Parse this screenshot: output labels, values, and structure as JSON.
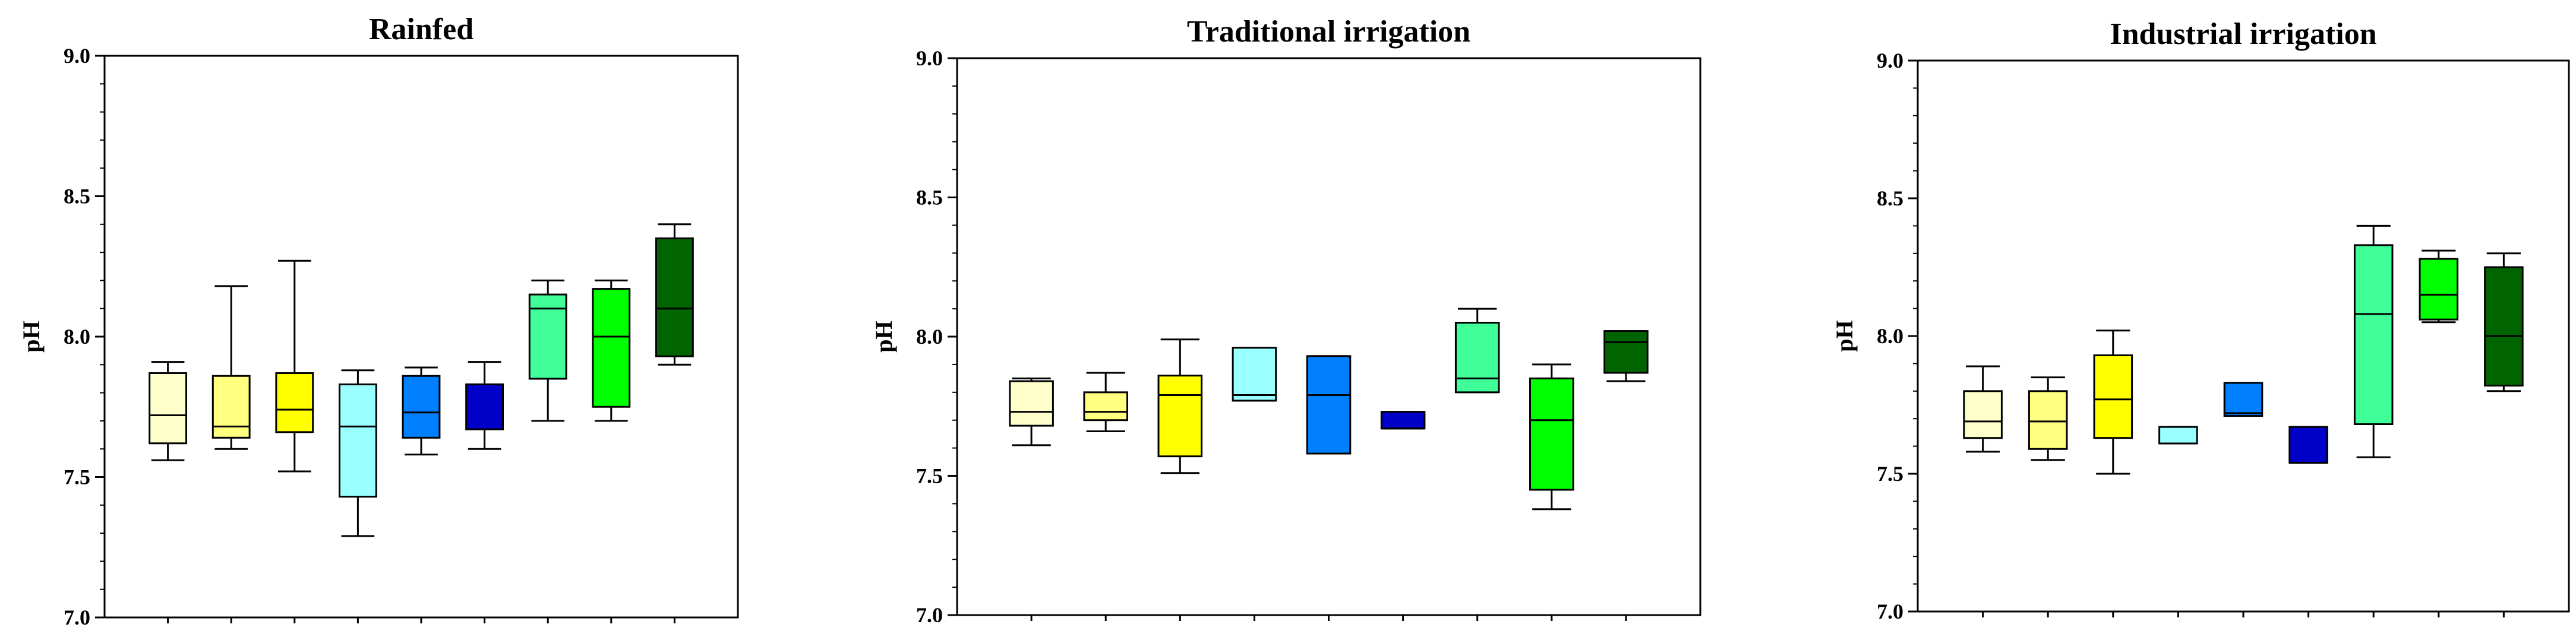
{
  "chart_data": [
    {
      "type": "box",
      "title": "Rainfed",
      "xlabel": "",
      "ylabel": "pH",
      "ylim": [
        7.0,
        9.0
      ],
      "yticks": [
        "7.0",
        "7.5",
        "8.0",
        "8.5",
        "9.0"
      ],
      "boxes": [
        {
          "color": "#ffffcc",
          "whisker_low": 7.56,
          "q1": 7.62,
          "median": 7.72,
          "q3": 7.87,
          "whisker_high": 7.91
        },
        {
          "color": "#ffff80",
          "whisker_low": 7.6,
          "q1": 7.64,
          "median": 7.68,
          "q3": 7.86,
          "whisker_high": 8.18
        },
        {
          "color": "#ffff00",
          "whisker_low": 7.52,
          "q1": 7.66,
          "median": 7.74,
          "q3": 7.87,
          "whisker_high": 8.27
        },
        {
          "color": "#99ffff",
          "whisker_low": 7.29,
          "q1": 7.43,
          "median": 7.68,
          "q3": 7.83,
          "whisker_high": 7.88
        },
        {
          "color": "#0080ff",
          "whisker_low": 7.58,
          "q1": 7.64,
          "median": 7.73,
          "q3": 7.86,
          "whisker_high": 7.89
        },
        {
          "color": "#0000c8",
          "whisker_low": 7.6,
          "q1": 7.67,
          "median": 7.83,
          "q3": 7.83,
          "whisker_high": 7.91
        },
        {
          "color": "#40ff99",
          "whisker_low": 7.7,
          "q1": 7.85,
          "median": 8.1,
          "q3": 8.15,
          "whisker_high": 8.2
        },
        {
          "color": "#00ff00",
          "whisker_low": 7.7,
          "q1": 7.75,
          "median": 8.0,
          "q3": 8.17,
          "whisker_high": 8.2
        },
        {
          "color": "#006400",
          "whisker_low": 7.9,
          "q1": 7.93,
          "median": 8.1,
          "q3": 8.35,
          "whisker_high": 8.4
        }
      ]
    },
    {
      "type": "box",
      "title": "Traditional irrigation",
      "xlabel": "",
      "ylabel": "pH",
      "ylim": [
        7.0,
        9.0
      ],
      "yticks": [
        "7.0",
        "7.5",
        "8.0",
        "8.5",
        "9.0"
      ],
      "boxes": [
        {
          "color": "#ffffcc",
          "whisker_low": 7.61,
          "q1": 7.68,
          "median": 7.73,
          "q3": 7.84,
          "whisker_high": 7.85
        },
        {
          "color": "#ffff80",
          "whisker_low": 7.66,
          "q1": 7.7,
          "median": 7.73,
          "q3": 7.8,
          "whisker_high": 7.87
        },
        {
          "color": "#ffff00",
          "whisker_low": 7.51,
          "q1": 7.57,
          "median": 7.79,
          "q3": 7.86,
          "whisker_high": 7.99
        },
        {
          "color": "#99ffff",
          "whisker_low": 7.77,
          "q1": 7.77,
          "median": 7.79,
          "q3": 7.96,
          "whisker_high": 7.96
        },
        {
          "color": "#0080ff",
          "whisker_low": 7.58,
          "q1": 7.58,
          "median": 7.79,
          "q3": 7.93,
          "whisker_high": 7.93
        },
        {
          "color": "#0000c8",
          "whisker_low": 7.67,
          "q1": 7.67,
          "median": 7.67,
          "q3": 7.73,
          "whisker_high": 7.73
        },
        {
          "color": "#40ff99",
          "whisker_low": 7.8,
          "q1": 7.8,
          "median": 7.85,
          "q3": 8.05,
          "whisker_high": 8.1
        },
        {
          "color": "#00ff00",
          "whisker_low": 7.38,
          "q1": 7.45,
          "median": 7.7,
          "q3": 7.85,
          "whisker_high": 7.9
        },
        {
          "color": "#006400",
          "whisker_low": 7.84,
          "q1": 7.87,
          "median": 7.98,
          "q3": 8.02,
          "whisker_high": 8.02
        }
      ]
    },
    {
      "type": "box",
      "title": "Industrial irrigation",
      "xlabel": "",
      "ylabel": "pH",
      "ylim": [
        7.0,
        9.0
      ],
      "yticks": [
        "7.0",
        "7.5",
        "8.0",
        "8.5",
        "9.0"
      ],
      "boxes": [
        {
          "color": "#ffffcc",
          "whisker_low": 7.58,
          "q1": 7.63,
          "median": 7.69,
          "q3": 7.8,
          "whisker_high": 7.89
        },
        {
          "color": "#ffff80",
          "whisker_low": 7.55,
          "q1": 7.59,
          "median": 7.69,
          "q3": 7.8,
          "whisker_high": 7.85
        },
        {
          "color": "#ffff00",
          "whisker_low": 7.5,
          "q1": 7.63,
          "median": 7.77,
          "q3": 7.93,
          "whisker_high": 8.02
        },
        {
          "color": "#99ffff",
          "whisker_low": 7.61,
          "q1": 7.61,
          "median": 7.61,
          "q3": 7.67,
          "whisker_high": 7.67
        },
        {
          "color": "#0080ff",
          "whisker_low": 7.71,
          "q1": 7.71,
          "median": 7.72,
          "q3": 7.83,
          "whisker_high": 7.83
        },
        {
          "color": "#0000c8",
          "whisker_low": 7.54,
          "q1": 7.54,
          "median": 7.54,
          "q3": 7.67,
          "whisker_high": 7.67
        },
        {
          "color": "#40ff99",
          "whisker_low": 7.56,
          "q1": 7.68,
          "median": 8.08,
          "q3": 8.33,
          "whisker_high": 8.4
        },
        {
          "color": "#00ff00",
          "whisker_low": 8.05,
          "q1": 8.06,
          "median": 8.15,
          "q3": 8.28,
          "whisker_high": 8.31
        },
        {
          "color": "#006400",
          "whisker_low": 7.8,
          "q1": 7.82,
          "median": 8.0,
          "q3": 8.25,
          "whisker_high": 8.3
        }
      ]
    }
  ]
}
